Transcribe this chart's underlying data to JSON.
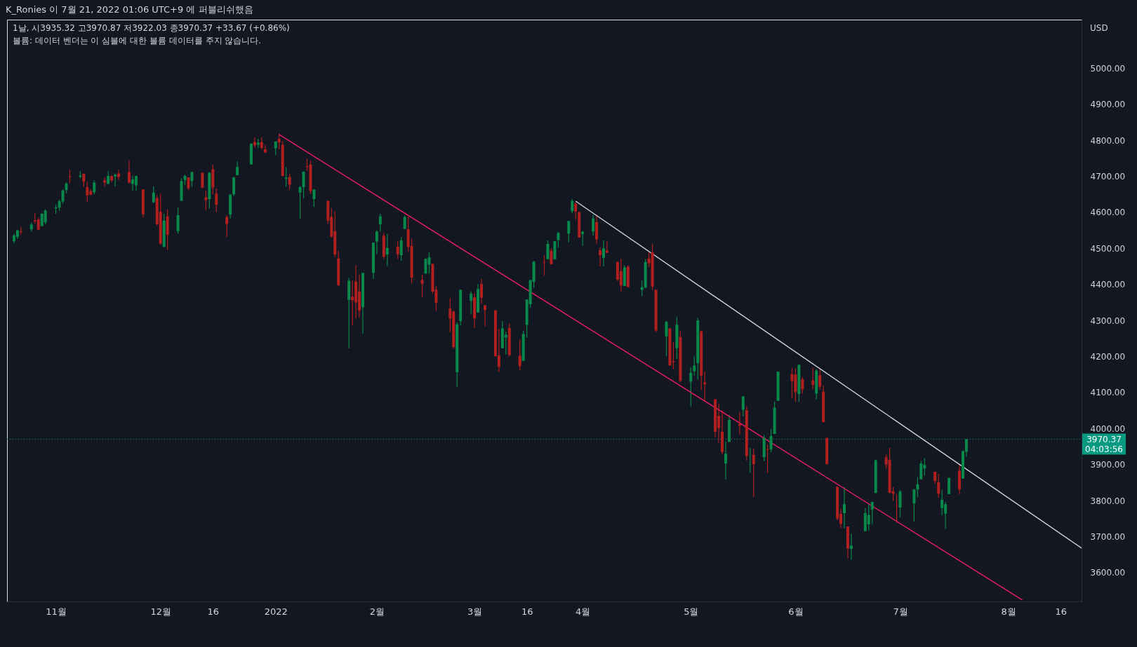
{
  "chart_data": {
    "type": "candlestick",
    "title": "1날, 시3935.32 고3970.87 저3922.03 종3970.37 +33.67 (+0.86%)",
    "subtitle": "볼륨: 데이터 벤더는 이 심볼에 대한 볼륨 데이터를 주지 않습니다.",
    "ylabel": "USD",
    "annotations": [
      "K_Ronies 이 7월 21, 2022 01:06 UTC+9 에 퍼블리쉬했음",
      "04:03:56"
    ],
    "x": [
      "2021-10-20",
      "2021-10-21",
      "2021-10-22",
      "2021-10-25",
      "2021-10-26",
      "2021-10-27",
      "2021-10-28",
      "2021-10-29",
      "2021-11-01",
      "2021-11-02",
      "2021-11-03",
      "2021-11-04",
      "2021-11-05",
      "2021-11-08",
      "2021-11-09",
      "2021-11-10",
      "2021-11-11",
      "2021-11-12",
      "2021-11-15",
      "2021-11-16",
      "2021-11-17",
      "2021-11-18",
      "2021-11-19",
      "2021-11-22",
      "2021-11-23",
      "2021-11-24",
      "2021-11-26",
      "2021-11-29",
      "2021-11-30",
      "2021-12-01",
      "2021-12-02",
      "2021-12-03",
      "2021-12-06",
      "2021-12-07",
      "2021-12-08",
      "2021-12-09",
      "2021-12-10",
      "2021-12-13",
      "2021-12-14",
      "2021-12-15",
      "2021-12-16",
      "2021-12-17",
      "2021-12-20",
      "2021-12-21",
      "2021-12-22",
      "2021-12-23",
      "2021-12-27",
      "2021-12-28",
      "2021-12-29",
      "2021-12-30",
      "2021-12-31",
      "2022-01-03",
      "2022-01-04",
      "2022-01-05",
      "2022-01-06",
      "2022-01-07",
      "2022-01-10",
      "2022-01-11",
      "2022-01-12",
      "2022-01-13",
      "2022-01-14",
      "2022-01-18",
      "2022-01-19",
      "2022-01-20",
      "2022-01-21",
      "2022-01-24",
      "2022-01-25",
      "2022-01-26",
      "2022-01-27",
      "2022-01-28",
      "2022-01-31",
      "2022-02-01",
      "2022-02-02",
      "2022-02-03",
      "2022-02-04",
      "2022-02-07",
      "2022-02-08",
      "2022-02-09",
      "2022-02-10",
      "2022-02-11",
      "2022-02-14",
      "2022-02-15",
      "2022-02-16",
      "2022-02-17",
      "2022-02-18",
      "2022-02-22",
      "2022-02-23",
      "2022-02-24",
      "2022-02-25",
      "2022-02-28",
      "2022-03-01",
      "2022-03-02",
      "2022-03-03",
      "2022-03-04",
      "2022-03-07",
      "2022-03-08",
      "2022-03-09",
      "2022-03-10",
      "2022-03-11",
      "2022-03-14",
      "2022-03-15",
      "2022-03-16",
      "2022-03-17",
      "2022-03-18",
      "2022-03-21",
      "2022-03-22",
      "2022-03-23",
      "2022-03-24",
      "2022-03-25",
      "2022-03-28",
      "2022-03-29",
      "2022-03-30",
      "2022-03-31",
      "2022-04-01",
      "2022-04-04",
      "2022-04-05",
      "2022-04-06",
      "2022-04-07",
      "2022-04-08",
      "2022-04-11",
      "2022-04-12",
      "2022-04-13",
      "2022-04-14",
      "2022-04-18",
      "2022-04-19",
      "2022-04-20",
      "2022-04-21",
      "2022-04-22",
      "2022-04-25",
      "2022-04-26",
      "2022-04-27",
      "2022-04-28",
      "2022-04-29",
      "2022-05-02",
      "2022-05-03",
      "2022-05-04",
      "2022-05-05",
      "2022-05-06",
      "2022-05-09",
      "2022-05-10",
      "2022-05-11",
      "2022-05-12",
      "2022-05-13",
      "2022-05-16",
      "2022-05-17",
      "2022-05-18",
      "2022-05-19",
      "2022-05-20",
      "2022-05-23",
      "2022-05-24",
      "2022-05-25",
      "2022-05-26",
      "2022-05-27",
      "2022-05-31",
      "2022-06-01",
      "2022-06-02",
      "2022-06-03",
      "2022-06-06",
      "2022-06-07",
      "2022-06-08",
      "2022-06-09",
      "2022-06-10",
      "2022-06-13",
      "2022-06-14",
      "2022-06-15",
      "2022-06-16",
      "2022-06-17",
      "2022-06-21",
      "2022-06-22",
      "2022-06-23",
      "2022-06-24",
      "2022-06-27",
      "2022-06-28",
      "2022-06-29",
      "2022-06-30",
      "2022-07-01",
      "2022-07-05",
      "2022-07-06",
      "2022-07-07",
      "2022-07-08",
      "2022-07-11",
      "2022-07-12",
      "2022-07-13",
      "2022-07-14",
      "2022-07-15",
      "2022-07-18",
      "2022-07-19",
      "2022-07-20"
    ],
    "xlim": [
      "2021-10-18",
      "2022-08-22"
    ],
    "ohlc": [
      [
        4520,
        4540,
        4514,
        4536
      ],
      [
        4532,
        4551,
        4526,
        4550
      ],
      [
        4547,
        4560,
        4538,
        4545
      ],
      [
        4553,
        4572,
        4547,
        4566
      ],
      [
        4578,
        4598,
        4569,
        4575
      ],
      [
        4580,
        4585,
        4551,
        4552
      ],
      [
        4562,
        4598,
        4562,
        4596
      ],
      [
        4572,
        4608,
        4567,
        4605
      ],
      [
        4611,
        4621,
        4596,
        4614
      ],
      [
        4613,
        4635,
        4604,
        4631
      ],
      [
        4630,
        4664,
        4624,
        4661
      ],
      [
        4662,
        4684,
        4653,
        4680
      ],
      [
        4700,
        4718,
        4681,
        4698
      ],
      [
        4699,
        4714,
        4695,
        4702
      ],
      [
        4707,
        4708,
        4670,
        4685
      ],
      [
        4670,
        4685,
        4630,
        4647
      ],
      [
        4659,
        4664,
        4648,
        4649
      ],
      [
        4656,
        4689,
        4650,
        4683
      ],
      [
        4689,
        4697,
        4673,
        4683
      ],
      [
        4679,
        4714,
        4679,
        4701
      ],
      [
        4701,
        4702,
        4684,
        4689
      ],
      [
        4700,
        4708,
        4672,
        4705
      ],
      [
        4708,
        4718,
        4690,
        4698
      ],
      [
        4712,
        4744,
        4680,
        4683
      ],
      [
        4679,
        4701,
        4660,
        4691
      ],
      [
        4675,
        4702,
        4660,
        4701
      ],
      [
        4664,
        4664,
        4586,
        4595
      ],
      [
        4628,
        4672,
        4626,
        4655
      ],
      [
        4640,
        4647,
        4564,
        4567
      ],
      [
        4602,
        4652,
        4510,
        4513
      ],
      [
        4504,
        4596,
        4504,
        4577
      ],
      [
        4589,
        4608,
        4496,
        4538
      ],
      [
        4548,
        4613,
        4541,
        4592
      ],
      [
        4632,
        4695,
        4632,
        4687
      ],
      [
        4690,
        4705,
        4675,
        4701
      ],
      [
        4697,
        4697,
        4662,
        4667
      ],
      [
        4687,
        4713,
        4671,
        4712
      ],
      [
        4710,
        4711,
        4667,
        4669
      ],
      [
        4642,
        4660,
        4606,
        4634
      ],
      [
        4637,
        4712,
        4611,
        4710
      ],
      [
        4720,
        4732,
        4650,
        4669
      ],
      [
        4652,
        4666,
        4600,
        4621
      ],
      [
        4587,
        4592,
        4531,
        4568
      ],
      [
        4594,
        4651,
        4583,
        4649
      ],
      [
        4650,
        4698,
        4645,
        4697
      ],
      [
        4703,
        4741,
        4703,
        4726
      ],
      [
        4733,
        4791,
        4733,
        4791
      ],
      [
        4795,
        4808,
        4780,
        4786
      ],
      [
        4788,
        4804,
        4778,
        4793
      ],
      [
        4795,
        4808,
        4775,
        4779
      ],
      [
        4775,
        4787,
        4766,
        4766
      ],
      [
        4778,
        4797,
        4759,
        4797
      ],
      [
        4804,
        4819,
        4775,
        4794
      ],
      [
        4787,
        4798,
        4700,
        4701
      ],
      [
        4693,
        4726,
        4671,
        4696
      ],
      [
        4698,
        4708,
        4663,
        4677
      ],
      [
        4655,
        4673,
        4582,
        4670
      ],
      [
        4670,
        4714,
        4639,
        4713
      ],
      [
        4728,
        4749,
        4715,
        4726
      ],
      [
        4733,
        4744,
        4651,
        4659
      ],
      [
        4637,
        4665,
        4615,
        4663
      ],
      [
        4632,
        4632,
        4569,
        4577
      ],
      [
        4588,
        4612,
        4530,
        4533
      ],
      [
        4548,
        4603,
        4476,
        4483
      ],
      [
        4472,
        4494,
        4395,
        4398
      ],
      [
        4357,
        4418,
        4223,
        4410
      ],
      [
        4366,
        4411,
        4287,
        4356
      ],
      [
        4408,
        4454,
        4305,
        4350
      ],
      [
        4381,
        4428,
        4309,
        4327
      ],
      [
        4337,
        4432,
        4264,
        4432
      ],
      [
        4432,
        4517,
        4415,
        4516
      ],
      [
        4519,
        4550,
        4484,
        4547
      ],
      [
        4567,
        4596,
        4547,
        4589
      ],
      [
        4535,
        4543,
        4471,
        4477
      ],
      [
        4483,
        4540,
        4451,
        4501
      ],
      [
        4505,
        4521,
        4471,
        4484
      ],
      [
        4481,
        4531,
        4465,
        4522
      ],
      [
        4554,
        4591,
        4554,
        4587
      ],
      [
        4553,
        4589,
        4492,
        4504
      ],
      [
        4507,
        4527,
        4402,
        4419
      ],
      [
        4413,
        4427,
        4364,
        4402
      ],
      [
        4430,
        4472,
        4430,
        4471
      ],
      [
        4455,
        4490,
        4430,
        4475
      ],
      [
        4457,
        4457,
        4374,
        4380
      ],
      [
        4385,
        4395,
        4327,
        4349
      ],
      [
        4333,
        4362,
        4267,
        4305
      ],
      [
        4325,
        4326,
        4222,
        4226
      ],
      [
        4156,
        4295,
        4115,
        4289
      ],
      [
        4298,
        4385,
        4286,
        4385
      ],
      [
        4355,
        4381,
        4317,
        4374
      ],
      [
        4364,
        4375,
        4279,
        4306
      ],
      [
        4322,
        4401,
        4322,
        4387
      ],
      [
        4401,
        4416,
        4347,
        4363
      ],
      [
        4342,
        4343,
        4284,
        4329
      ],
      [
        4328,
        4329,
        4199,
        4201
      ],
      [
        4203,
        4277,
        4157,
        4171
      ],
      [
        4223,
        4299,
        4223,
        4278
      ],
      [
        4253,
        4269,
        4206,
        4260
      ],
      [
        4279,
        4292,
        4200,
        4204
      ],
      [
        4202,
        4247,
        4162,
        4173
      ],
      [
        4188,
        4271,
        4187,
        4262
      ],
      [
        4288,
        4358,
        4252,
        4358
      ],
      [
        4345,
        4412,
        4335,
        4412
      ],
      [
        4407,
        4465,
        4390,
        4463
      ],
      [
        4463,
        4481,
        4425,
        4461
      ],
      [
        4470,
        4522,
        4470,
        4512
      ],
      [
        4494,
        4501,
        4455,
        4456
      ],
      [
        4470,
        4521,
        4469,
        4520
      ],
      [
        4523,
        4546,
        4502,
        4543
      ],
      [
        4541,
        4576,
        4517,
        4576
      ],
      [
        4603,
        4637,
        4598,
        4632
      ],
      [
        4624,
        4628,
        4581,
        4602
      ],
      [
        4600,
        4603,
        4530,
        4530
      ],
      [
        4540,
        4549,
        4507,
        4546
      ],
      [
        4547,
        4593,
        4535,
        4583
      ],
      [
        4573,
        4593,
        4514,
        4525
      ],
      [
        4495,
        4503,
        4450,
        4481
      ],
      [
        4474,
        4522,
        4450,
        4500
      ],
      [
        4494,
        4521,
        4487,
        4488
      ],
      [
        4462,
        4464,
        4409,
        4413
      ],
      [
        4437,
        4471,
        4381,
        4397
      ],
      [
        4396,
        4453,
        4395,
        4447
      ],
      [
        4449,
        4453,
        4392,
        4393
      ],
      [
        4385,
        4410,
        4367,
        4392
      ],
      [
        4391,
        4471,
        4391,
        4462
      ],
      [
        4472,
        4489,
        4448,
        4459
      ],
      [
        4489,
        4513,
        4385,
        4394
      ],
      [
        4385,
        4386,
        4268,
        4272
      ],
      [
        4256,
        4299,
        4201,
        4296
      ],
      [
        4278,
        4278,
        4175,
        4175
      ],
      [
        4187,
        4240,
        4164,
        4184
      ],
      [
        4223,
        4309,
        4193,
        4288
      ],
      [
        4254,
        4270,
        4129,
        4132
      ],
      [
        4130,
        4170,
        4062,
        4155
      ],
      [
        4159,
        4200,
        4147,
        4175
      ],
      [
        4182,
        4307,
        4136,
        4300
      ],
      [
        4270,
        4271,
        4107,
        4147
      ],
      [
        4128,
        4158,
        4077,
        4123
      ],
      [
        4081,
        4082,
        3976,
        3991
      ],
      [
        4035,
        4068,
        3959,
        4001
      ],
      [
        3991,
        4050,
        3929,
        3935
      ],
      [
        3903,
        3964,
        3859,
        3930
      ],
      [
        3963,
        4038,
        3963,
        4024
      ],
      [
        4013,
        4046,
        3984,
        4008
      ],
      [
        4052,
        4090,
        4034,
        4089
      ],
      [
        4051,
        4062,
        3911,
        3924
      ],
      [
        3900,
        3946,
        3877,
        3901
      ],
      [
        3927,
        3944,
        3810,
        3901
      ],
      [
        3920,
        3982,
        3909,
        3974
      ],
      [
        3943,
        3956,
        3876,
        3941
      ],
      [
        3942,
        3999,
        3934,
        3979
      ],
      [
        3985,
        4075,
        3985,
        4058
      ],
      [
        4077,
        4158,
        4077,
        4158
      ],
      [
        4151,
        4169,
        4084,
        4132
      ],
      [
        4150,
        4167,
        4074,
        4101
      ],
      [
        4096,
        4177,
        4074,
        4177
      ],
      [
        4137,
        4143,
        4097,
        4109
      ],
      [
        4134,
        4169,
        4109,
        4121
      ],
      [
        4097,
        4165,
        4081,
        4161
      ],
      [
        4148,
        4165,
        4108,
        4116
      ],
      [
        4102,
        4120,
        4017,
        4018
      ],
      [
        3974,
        3974,
        3900,
        3901
      ],
      [
        3838,
        3839,
        3745,
        3750
      ],
      [
        3763,
        3778,
        3724,
        3735
      ],
      [
        3765,
        3838,
        3723,
        3790
      ],
      [
        3728,
        3728,
        3640,
        3667
      ],
      [
        3666,
        3708,
        3636,
        3675
      ],
      [
        3715,
        3780,
        3715,
        3765
      ],
      [
        3734,
        3790,
        3717,
        3760
      ],
      [
        3775,
        3797,
        3735,
        3796
      ],
      [
        3821,
        3913,
        3821,
        3912
      ],
      [
        3920,
        3928,
        3889,
        3900
      ],
      [
        3913,
        3946,
        3820,
        3822
      ],
      [
        3826,
        3837,
        3799,
        3819
      ],
      [
        3786,
        3818,
        3738,
        3785
      ],
      [
        3781,
        3829,
        3753,
        3825
      ],
      [
        3792,
        3832,
        3742,
        3831
      ],
      [
        3831,
        3865,
        3810,
        3845
      ],
      [
        3859,
        3910,
        3859,
        3903
      ],
      [
        3889,
        3918,
        3869,
        3899
      ],
      [
        3880,
        3880,
        3847,
        3854
      ],
      [
        3851,
        3874,
        3808,
        3819
      ],
      [
        3779,
        3829,
        3759,
        3802
      ],
      [
        3764,
        3796,
        3721,
        3790
      ],
      [
        3818,
        3863,
        3818,
        3863
      ],
      [
        3883,
        3902,
        3818,
        3831
      ],
      [
        3861,
        3940,
        3861,
        3937
      ],
      [
        3935.32,
        3970.87,
        3922.03,
        3970.37
      ]
    ],
    "colors": [
      "#08894b",
      "#08894b",
      "#b11f1f",
      "#08894b",
      "#b11f1f",
      "#b11f1f",
      "#08894b",
      "#08894b",
      "#08894b",
      "#08894b",
      "#08894b",
      "#08894b",
      "#b11f1f",
      "#08894b",
      "#b11f1f",
      "#b11f1f",
      "#b11f1f",
      "#08894b",
      "#b11f1f",
      "#08894b",
      "#b11f1f",
      "#08894b",
      "#b11f1f",
      "#b11f1f",
      "#08894b",
      "#08894b",
      "#b11f1f",
      "#08894b",
      "#b11f1f",
      "#b11f1f",
      "#08894b",
      "#b11f1f",
      "#08894b",
      "#08894b",
      "#08894b",
      "#b11f1f",
      "#08894b",
      "#b11f1f",
      "#b11f1f",
      "#08894b",
      "#b11f1f",
      "#b11f1f",
      "#b11f1f",
      "#08894b",
      "#08894b",
      "#08894b",
      "#08894b",
      "#b11f1f",
      "#08894b",
      "#b11f1f",
      "#b11f1f",
      "#08894b",
      "#b11f1f",
      "#b11f1f",
      "#08894b",
      "#b11f1f",
      "#08894b",
      "#08894b",
      "#b11f1f",
      "#b11f1f",
      "#08894b",
      "#b11f1f",
      "#b11f1f",
      "#b11f1f",
      "#b11f1f",
      "#08894b",
      "#b11f1f",
      "#b11f1f",
      "#b11f1f",
      "#08894b",
      "#08894b",
      "#08894b",
      "#08894b",
      "#b11f1f",
      "#08894b",
      "#b11f1f",
      "#08894b",
      "#08894b",
      "#b11f1f",
      "#b11f1f",
      "#b11f1f",
      "#08894b",
      "#08894b",
      "#b11f1f",
      "#b11f1f",
      "#b11f1f",
      "#b11f1f",
      "#08894b",
      "#08894b",
      "#08894b",
      "#b11f1f",
      "#08894b",
      "#b11f1f",
      "#b11f1f",
      "#b11f1f",
      "#b11f1f",
      "#08894b",
      "#08894b",
      "#b11f1f",
      "#b11f1f",
      "#08894b",
      "#08894b",
      "#08894b",
      "#08894b",
      "#b11f1f",
      "#08894b",
      "#b11f1f",
      "#08894b",
      "#08894b",
      "#08894b",
      "#08894b",
      "#b11f1f",
      "#b11f1f",
      "#08894b",
      "#08894b",
      "#b11f1f",
      "#b11f1f",
      "#08894b",
      "#b11f1f",
      "#b11f1f",
      "#b11f1f",
      "#08894b",
      "#b11f1f",
      "#08894b",
      "#08894b",
      "#b11f1f",
      "#b11f1f",
      "#b11f1f",
      "#08894b",
      "#b11f1f",
      "#b11f1f",
      "#08894b",
      "#b11f1f",
      "#08894b",
      "#08894b",
      "#08894b",
      "#b11f1f",
      "#b11f1f",
      "#b11f1f",
      "#b11f1f",
      "#b11f1f",
      "#08894b",
      "#08894b",
      "#b11f1f",
      "#08894b",
      "#b11f1f",
      "#08894b",
      "#b11f1f",
      "#08894b",
      "#b11f1f",
      "#08894b",
      "#08894b",
      "#08894b",
      "#b11f1f",
      "#b11f1f",
      "#08894b",
      "#b11f1f",
      "#b11f1f",
      "#08894b",
      "#b11f1f",
      "#b11f1f",
      "#b11f1f",
      "#b11f1f",
      "#b11f1f",
      "#08894b",
      "#b11f1f",
      "#08894b",
      "#08894b",
      "#08894b",
      "#08894b",
      "#08894b",
      "#b11f1f",
      "#b11f1f",
      "#b11f1f",
      "#b11f1f",
      "#08894b",
      "#08894b",
      "#08894b",
      "#08894b",
      "#08894b",
      "#b11f1f",
      "#b11f1f",
      "#08894b",
      "#08894b",
      "#08894b",
      "#b11f1f",
      "#08894b",
      "#08894b"
    ],
    "series": [
      {
        "type": "line",
        "color": "#e91e63",
        "x": [
          "2022-01-04",
          "2022-08-05"
        ],
        "values": [
          4816,
          3524
        ]
      },
      {
        "type": "line",
        "color": "#d1d4dc",
        "x": [
          "2022-03-30",
          "2022-08-22"
        ],
        "values": [
          4631,
          3668
        ]
      }
    ],
    "ref_lines": [
      {
        "axis": "y",
        "value": 3970.37,
        "label": "3970.37",
        "color": "#089981",
        "line_style": "dotted"
      }
    ],
    "ylim": [
      3520,
      5135
    ],
    "yticks": [
      {
        "value": 3600,
        "label": "3600.00"
      },
      {
        "value": 3700,
        "label": "3700.00"
      },
      {
        "value": 3800,
        "label": "3800.00"
      },
      {
        "value": 3900,
        "label": "3900.00"
      },
      {
        "value": 4000,
        "label": "4000.00"
      },
      {
        "value": 4100,
        "label": "4100.00"
      },
      {
        "value": 4200,
        "label": "4200.00"
      },
      {
        "value": 4300,
        "label": "4300.00"
      },
      {
        "value": 4400,
        "label": "4400.00"
      },
      {
        "value": 4500,
        "label": "4500.00"
      },
      {
        "value": 4600,
        "label": "4600.00"
      },
      {
        "value": 4700,
        "label": "4700.00"
      },
      {
        "value": 4800,
        "label": "4800.00"
      },
      {
        "value": 4900,
        "label": "4900.00"
      },
      {
        "value": 5000,
        "label": "5000.00"
      }
    ],
    "xticks": [
      {
        "value": "2021-11-01",
        "label": "11월"
      },
      {
        "value": "2021-12-01",
        "label": "12월"
      },
      {
        "value": "2021-12-16",
        "label": "16"
      },
      {
        "value": "2022-01-03",
        "label": "2022"
      },
      {
        "value": "2022-02-01",
        "label": "2월"
      },
      {
        "value": "2022-03-01",
        "label": "3월"
      },
      {
        "value": "2022-03-16",
        "label": "16"
      },
      {
        "value": "2022-04-01",
        "label": "4월"
      },
      {
        "value": "2022-05-02",
        "label": "5월"
      },
      {
        "value": "2022-06-01",
        "label": "6월"
      },
      {
        "value": "2022-07-01",
        "label": "7월"
      },
      {
        "value": "2022-08-01",
        "label": "8월"
      },
      {
        "value": "2022-08-16",
        "label": "16"
      }
    ],
    "grid": false
  }
}
